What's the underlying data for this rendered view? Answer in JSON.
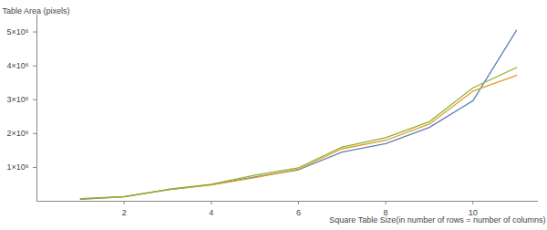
{
  "chart_data": {
    "type": "line",
    "y_label": "Table Area (pixels)",
    "x_label": "Square Table Size(in number of rows = number of columns)",
    "x": [
      1,
      2,
      3,
      4,
      5,
      6,
      7,
      8,
      9,
      10,
      11
    ],
    "series": [
      {
        "color": "#5e81b5",
        "values": [
          60000,
          130000,
          340000,
          490000,
          720000,
          930000,
          1450000,
          1700000,
          2180000,
          2970000,
          5050000
        ]
      },
      {
        "color": "#e19c24",
        "values": [
          70000,
          130000,
          340000,
          480000,
          700000,
          950000,
          1550000,
          1800000,
          2280000,
          3250000,
          3720000
        ]
      },
      {
        "color": "#8fb032",
        "values": [
          80000,
          140000,
          350000,
          500000,
          770000,
          990000,
          1600000,
          1880000,
          2350000,
          3350000,
          3950000
        ]
      }
    ],
    "xlim": [
      0,
      11.5
    ],
    "ylim": [
      0,
      5500000
    ],
    "xticks": [
      2,
      4,
      6,
      8,
      10
    ],
    "yticks": [
      {
        "value": 1000000,
        "label": "1×10⁶"
      },
      {
        "value": 2000000,
        "label": "2×10⁶"
      },
      {
        "value": 3000000,
        "label": "3×10⁶"
      },
      {
        "value": 4000000,
        "label": "4×10⁶"
      },
      {
        "value": 5000000,
        "label": "5×10⁶"
      }
    ],
    "grid": false,
    "marker": "none",
    "line_style": "solid"
  }
}
